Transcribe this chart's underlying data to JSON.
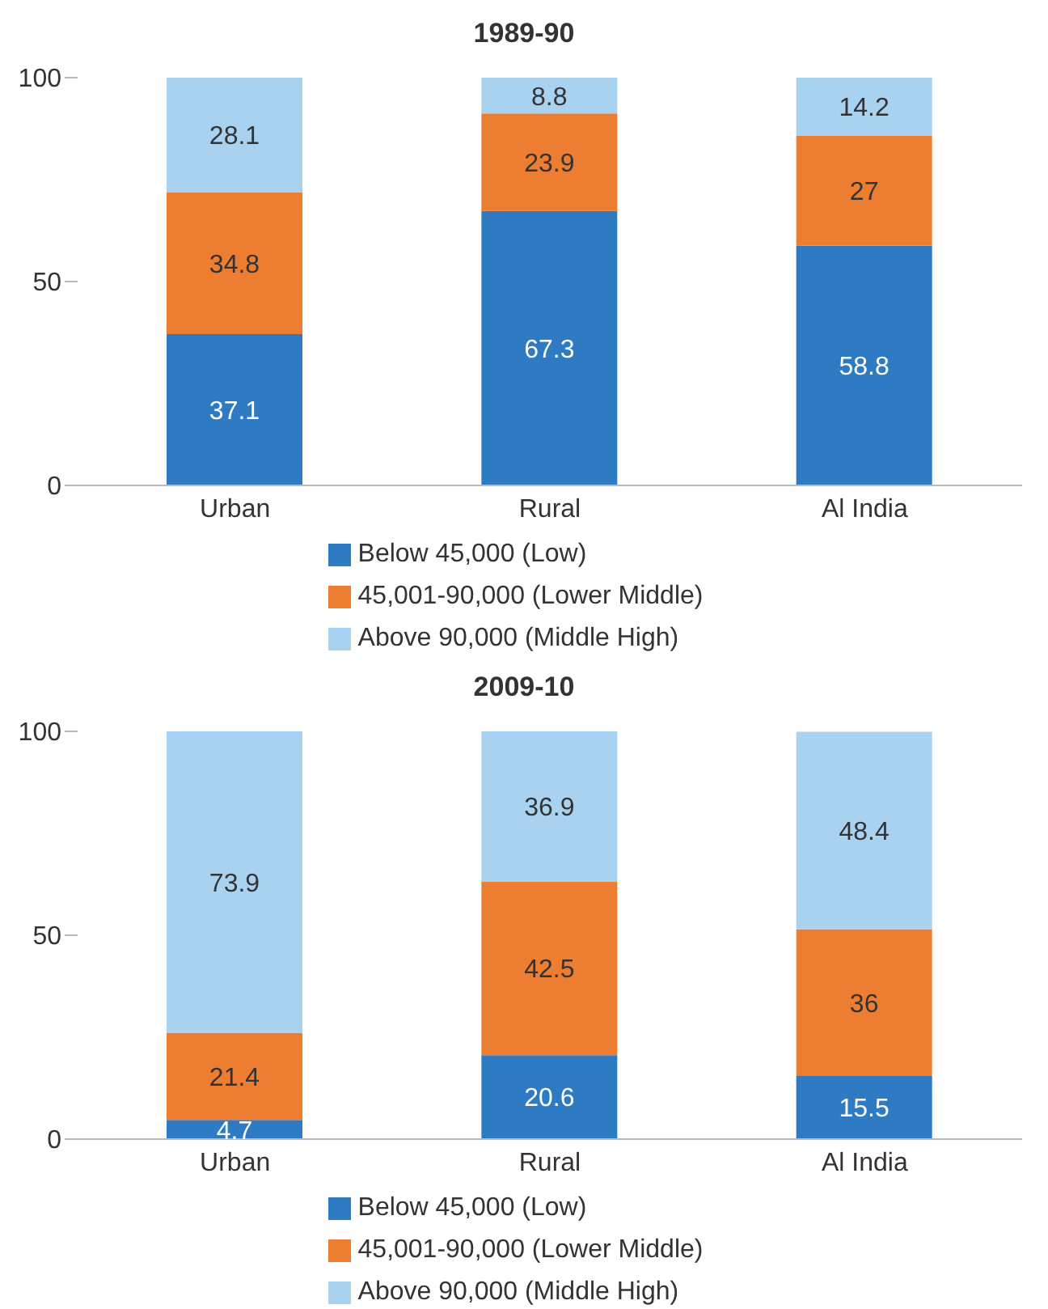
{
  "chart_data": [
    {
      "type": "bar",
      "title": "1989-90",
      "categories": [
        "Urban",
        "Rural",
        "Al India"
      ],
      "stacked": true,
      "data_labels": true,
      "legend": "bottom",
      "grid": false,
      "ylim": [
        0,
        100
      ],
      "yticks": [
        0,
        50,
        100
      ],
      "series": [
        {
          "name": "Below 45,000 (Low)",
          "color": "#2e7bc4",
          "values": [
            37.1,
            67.3,
            58.8
          ]
        },
        {
          "name": "45,001-90,000 (Lower Middle)",
          "color": "#ed7d31",
          "values": [
            34.8,
            23.9,
            27
          ]
        },
        {
          "name": "Above 90,000 (Middle High)",
          "color": "#a9d1f0",
          "values": [
            28.1,
            8.8,
            14.2
          ]
        }
      ]
    },
    {
      "type": "bar",
      "title": "2009-10",
      "categories": [
        "Urban",
        "Rural",
        "Al India"
      ],
      "stacked": true,
      "data_labels": true,
      "legend": "bottom",
      "grid": false,
      "ylim": [
        0,
        100
      ],
      "yticks": [
        0,
        50,
        100
      ],
      "series": [
        {
          "name": "Below 45,000 (Low)",
          "color": "#2e7bc4",
          "values": [
            4.7,
            20.6,
            15.5
          ]
        },
        {
          "name": "45,001-90,000 (Lower Middle)",
          "color": "#ed7d31",
          "values": [
            21.4,
            42.5,
            36
          ]
        },
        {
          "name": "Above 90,000 (Middle High)",
          "color": "#a9d1f0",
          "values": [
            73.9,
            36.9,
            48.4
          ]
        }
      ]
    }
  ]
}
